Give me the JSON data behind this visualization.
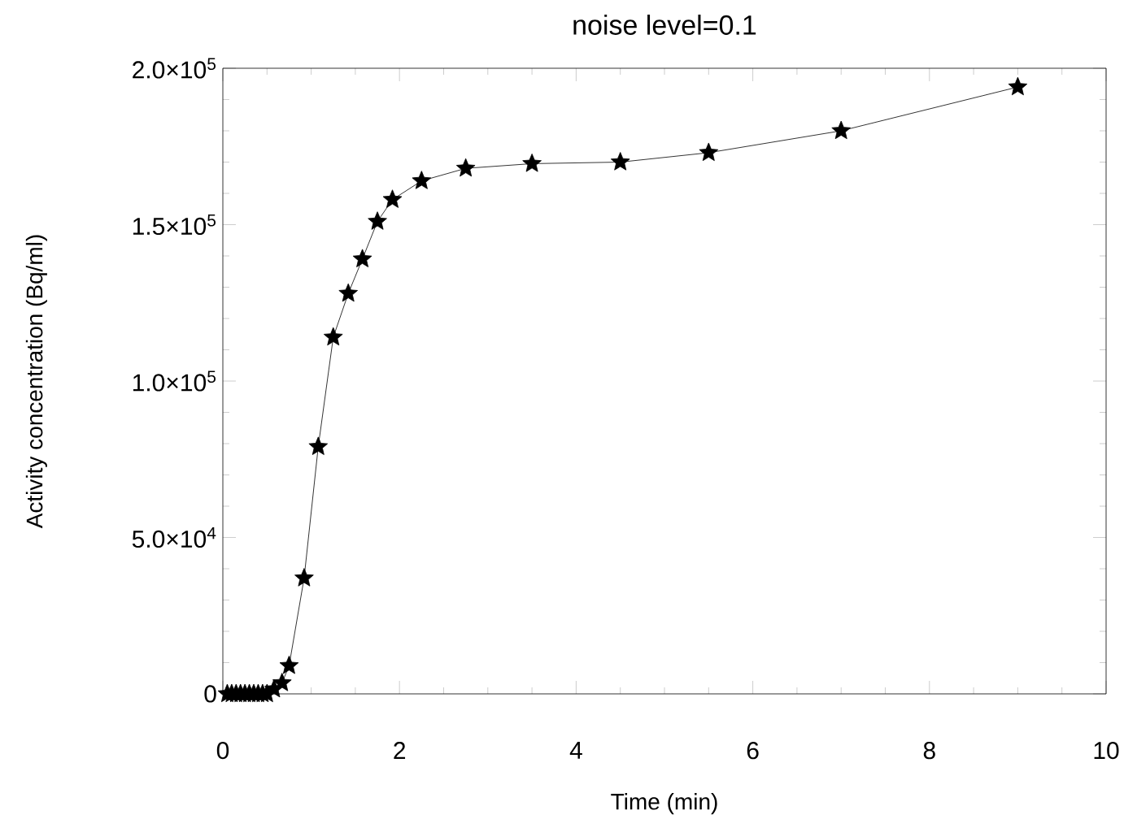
{
  "chart_data": {
    "type": "line",
    "title": "noise level=0.1",
    "xlabel": "Time (min)",
    "ylabel": "Activity concentration (Bq/ml)",
    "x": [
      0.05,
      0.1,
      0.15,
      0.2,
      0.25,
      0.3,
      0.35,
      0.4,
      0.45,
      0.5,
      0.58,
      0.67,
      0.75,
      0.92,
      1.08,
      1.25,
      1.42,
      1.58,
      1.75,
      1.92,
      2.25,
      2.75,
      3.5,
      4.5,
      5.5,
      7,
      9
    ],
    "series": [
      {
        "color": "#000000",
        "values": [
          0,
          0,
          0,
          0,
          0,
          0,
          0,
          0,
          0,
          0,
          1500,
          3500,
          9000,
          37000,
          79000,
          114000,
          128000,
          139000,
          151000,
          158000,
          164000,
          168000,
          169500,
          170000,
          173000,
          180000,
          194000
        ]
      }
    ],
    "xlim": [
      0,
      10
    ],
    "xticks": [
      0,
      2,
      4,
      6,
      8,
      10
    ],
    "ylim": [
      0,
      200000
    ],
    "yticks": [
      0,
      {
        "value": 50000,
        "label": "5.0×10$^{4}$"
      },
      {
        "value": 100000,
        "label": "1.0×10$^{5}$"
      },
      {
        "value": 150000,
        "label": "1.5×10$^{5}$"
      },
      {
        "value": 200000,
        "label": "2.0×10$^{5}$"
      }
    ],
    "marker": "star",
    "line_style": "solid",
    "grid": false
  }
}
